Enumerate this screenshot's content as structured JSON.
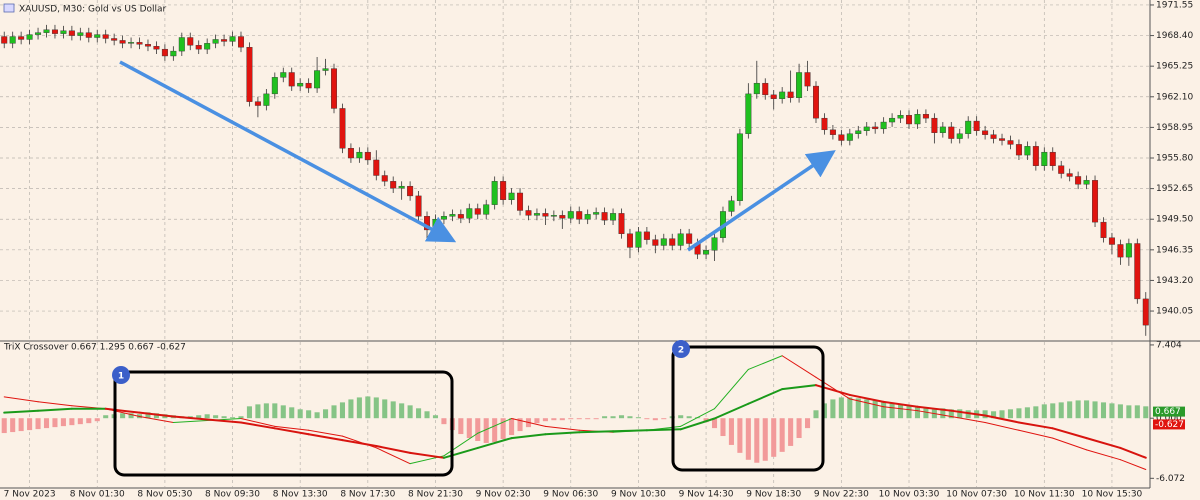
{
  "chart_data": [
    {
      "type": "candlestick",
      "title": "XAUUSD, M30: Gold vs US Dollar",
      "categories": [
        null,
        null,
        null,
        "7 Nov 2023",
        null,
        null,
        null,
        null,
        null,
        null,
        null,
        "8 Nov 01:30",
        null,
        null,
        null,
        null,
        null,
        null,
        null,
        "8 Nov 05:30",
        null,
        null,
        null,
        null,
        null,
        null,
        null,
        "8 Nov 09:30",
        null,
        null,
        null,
        null,
        null,
        null,
        null,
        "8 Nov 13:30",
        null,
        null,
        null,
        null,
        null,
        null,
        null,
        "8 Nov 17:30",
        null,
        null,
        null,
        null,
        null,
        null,
        null,
        "8 Nov 21:30",
        null,
        null,
        null,
        null,
        null,
        null,
        null,
        "9 Nov 02:30",
        null,
        null,
        null,
        null,
        null,
        null,
        null,
        "9 Nov 06:30",
        null,
        null,
        null,
        null,
        null,
        null,
        null,
        "9 Nov 10:30",
        null,
        null,
        null,
        null,
        null,
        null,
        null,
        "9 Nov 14:30",
        null,
        null,
        null,
        null,
        null,
        null,
        null,
        "9 Nov 18:30",
        null,
        null,
        null,
        null,
        null,
        null,
        null,
        "9 Nov 22:30",
        null,
        null,
        null,
        null,
        null,
        null,
        null,
        "10 Nov 03:30",
        null,
        null,
        null,
        null,
        null,
        null,
        null,
        "10 Nov 07:30",
        null,
        null,
        null,
        null,
        null,
        null,
        null,
        "10 Nov 11:30",
        null,
        null,
        null,
        null,
        null,
        null,
        null,
        "10 Nov 15:30",
        null,
        null,
        null,
        null
      ],
      "open": [
        1968.3,
        1967.6,
        1968.3,
        1968.0,
        1968.5,
        1968.7,
        1969.0,
        1968.6,
        1968.9,
        1968.4,
        1968.7,
        1968.2,
        1968.5,
        1968.1,
        1967.9,
        1967.6,
        1967.7,
        1967.5,
        1967.3,
        1967.0,
        1966.3,
        1966.8,
        1968.2,
        1967.4,
        1967.0,
        1967.6,
        1968.0,
        1967.8,
        1968.3,
        1967.2,
        1961.6,
        1961.2,
        1962.4,
        1964.1,
        1964.6,
        1963.2,
        1963.5,
        1963.0,
        1964.8,
        1965.0,
        1960.9,
        1956.8,
        1955.8,
        1956.4,
        1955.6,
        1954.0,
        1953.4,
        1952.7,
        1952.9,
        1951.9,
        1949.8,
        1948.4,
        1949.5,
        1949.8,
        1950.0,
        1949.6,
        1950.6,
        1950.0,
        1951.0,
        1953.4,
        1951.5,
        1952.2,
        1950.4,
        1949.9,
        1950.1,
        1949.8,
        1949.9,
        1949.6,
        1950.3,
        1949.5,
        1950.0,
        1950.2,
        1949.4,
        1950.1,
        1948.0,
        1946.6,
        1948.2,
        1947.4,
        1946.8,
        1947.5,
        1946.8,
        1948.0,
        1947.0,
        1945.9,
        1946.3,
        1947.6,
        1950.3,
        1951.4,
        1958.3,
        1962.4,
        1963.5,
        1962.3,
        1961.9,
        1962.6,
        1962.0,
        1964.6,
        1963.2,
        1959.9,
        1958.7,
        1958.2,
        1957.6,
        1958.3,
        1958.6,
        1959.0,
        1958.8,
        1959.5,
        1959.9,
        1960.2,
        1959.3,
        1960.3,
        1959.9,
        1958.4,
        1959.0,
        1957.8,
        1958.3,
        1959.6,
        1958.6,
        1958.2,
        1957.8,
        1957.6,
        1957.2,
        1956.1,
        1957.0,
        1955.0,
        1956.4,
        1955.0,
        1954.2,
        1953.9,
        1953.1,
        1953.5,
        1949.2,
        1947.6,
        1946.9,
        1945.6,
        1947.0,
        1941.3
      ],
      "high": [
        1968.8,
        1968.8,
        1968.8,
        1969.0,
        1969.2,
        1969.5,
        1969.5,
        1969.4,
        1969.4,
        1969.2,
        1969.2,
        1969.0,
        1969.0,
        1968.6,
        1968.4,
        1968.2,
        1968.2,
        1968.0,
        1967.8,
        1967.5,
        1967.3,
        1968.7,
        1968.7,
        1967.9,
        1968.1,
        1968.5,
        1968.5,
        1968.8,
        1968.8,
        1967.7,
        1962.1,
        1962.9,
        1964.6,
        1965.1,
        1965.1,
        1964.0,
        1964.0,
        1966.2,
        1966.0,
        1965.5,
        1961.4,
        1957.3,
        1956.9,
        1956.9,
        1956.6,
        1954.5,
        1953.9,
        1953.4,
        1953.4,
        1952.4,
        1950.3,
        1950.0,
        1950.3,
        1950.5,
        1950.5,
        1951.1,
        1951.1,
        1951.5,
        1953.9,
        1953.9,
        1952.7,
        1952.7,
        1950.9,
        1950.6,
        1950.6,
        1950.4,
        1950.4,
        1950.8,
        1950.8,
        1950.5,
        1950.7,
        1950.7,
        1950.6,
        1950.6,
        1948.5,
        1948.7,
        1948.7,
        1947.9,
        1948.0,
        1948.0,
        1948.5,
        1948.5,
        1947.5,
        1946.8,
        1948.1,
        1950.8,
        1951.9,
        1958.8,
        1963.5,
        1965.8,
        1964.0,
        1962.8,
        1963.1,
        1964.8,
        1965.5,
        1965.8,
        1963.7,
        1960.4,
        1959.2,
        1958.7,
        1958.8,
        1959.1,
        1959.5,
        1959.5,
        1960.0,
        1960.4,
        1960.7,
        1960.7,
        1960.8,
        1960.8,
        1960.4,
        1959.5,
        1959.5,
        1958.8,
        1960.1,
        1960.1,
        1959.1,
        1958.7,
        1958.3,
        1958.1,
        1957.7,
        1957.5,
        1957.5,
        1956.9,
        1956.9,
        1955.5,
        1954.7,
        1954.4,
        1954.0,
        1954.0,
        1949.7,
        1948.1,
        1947.4,
        1947.5,
        1947.5,
        1942.0
      ],
      "low": [
        1967.1,
        1967.1,
        1967.5,
        1967.5,
        1968.0,
        1968.2,
        1968.1,
        1968.1,
        1967.9,
        1967.9,
        1967.7,
        1967.7,
        1967.6,
        1967.4,
        1967.1,
        1967.1,
        1967.0,
        1966.8,
        1966.5,
        1965.8,
        1965.8,
        1966.3,
        1966.9,
        1966.5,
        1966.5,
        1967.1,
        1967.3,
        1967.3,
        1966.7,
        1961.1,
        1960.0,
        1960.7,
        1961.9,
        1963.6,
        1962.7,
        1962.7,
        1962.5,
        1962.5,
        1964.3,
        1960.4,
        1956.3,
        1955.3,
        1955.3,
        1955.1,
        1953.5,
        1952.9,
        1952.2,
        1951.5,
        1951.4,
        1949.3,
        1947.5,
        1947.9,
        1949.0,
        1949.3,
        1949.1,
        1949.1,
        1949.5,
        1949.5,
        1950.5,
        1951.0,
        1951.0,
        1949.9,
        1949.4,
        1949.4,
        1948.9,
        1949.3,
        1948.5,
        1949.1,
        1949.0,
        1949.0,
        1949.5,
        1948.9,
        1948.9,
        1947.5,
        1945.5,
        1946.1,
        1946.9,
        1946.0,
        1946.3,
        1946.3,
        1946.3,
        1946.5,
        1945.4,
        1945.4,
        1945.2,
        1947.1,
        1949.8,
        1950.9,
        1957.8,
        1961.9,
        1961.8,
        1960.8,
        1961.4,
        1961.5,
        1961.5,
        1962.7,
        1959.4,
        1958.2,
        1957.7,
        1957.1,
        1957.1,
        1957.8,
        1958.1,
        1958.3,
        1958.3,
        1959.0,
        1959.4,
        1958.8,
        1958.8,
        1959.4,
        1957.3,
        1957.9,
        1957.3,
        1957.3,
        1957.8,
        1958.1,
        1957.7,
        1957.3,
        1957.1,
        1956.7,
        1955.6,
        1955.6,
        1954.5,
        1954.5,
        1954.5,
        1953.7,
        1953.4,
        1952.6,
        1952.6,
        1948.7,
        1947.1,
        1945.9,
        1944.8,
        1944.7,
        1940.8,
        1937.5
      ],
      "close": [
        1967.6,
        1968.3,
        1968.0,
        1968.5,
        1968.7,
        1969.0,
        1968.6,
        1968.9,
        1968.4,
        1968.7,
        1968.2,
        1968.5,
        1968.1,
        1967.9,
        1967.6,
        1967.7,
        1967.5,
        1967.3,
        1967.0,
        1966.3,
        1966.8,
        1968.2,
        1967.4,
        1967.0,
        1967.6,
        1968.0,
        1967.8,
        1968.3,
        1967.2,
        1961.6,
        1961.2,
        1962.4,
        1964.1,
        1964.6,
        1963.2,
        1963.5,
        1963.0,
        1964.8,
        1965.0,
        1960.9,
        1956.8,
        1955.8,
        1956.4,
        1955.6,
        1954.0,
        1953.4,
        1952.7,
        1952.9,
        1951.9,
        1949.8,
        1948.4,
        1949.5,
        1949.8,
        1950.0,
        1949.6,
        1950.6,
        1950.0,
        1951.0,
        1953.4,
        1951.5,
        1952.2,
        1950.4,
        1949.9,
        1950.1,
        1949.8,
        1949.9,
        1949.6,
        1950.3,
        1949.5,
        1950.0,
        1950.2,
        1949.4,
        1950.1,
        1948.0,
        1946.6,
        1948.2,
        1947.4,
        1946.8,
        1947.5,
        1946.8,
        1948.0,
        1947.0,
        1945.9,
        1946.3,
        1947.6,
        1950.3,
        1951.4,
        1958.3,
        1962.4,
        1963.5,
        1962.3,
        1961.9,
        1962.6,
        1962.0,
        1964.6,
        1963.2,
        1959.9,
        1958.7,
        1958.2,
        1957.6,
        1958.3,
        1958.6,
        1959.0,
        1958.8,
        1959.5,
        1959.9,
        1960.2,
        1959.3,
        1960.3,
        1959.9,
        1958.4,
        1959.0,
        1957.8,
        1958.3,
        1959.6,
        1958.6,
        1958.2,
        1957.8,
        1957.6,
        1957.2,
        1956.1,
        1957.0,
        1955.0,
        1956.4,
        1955.0,
        1954.2,
        1953.9,
        1953.1,
        1953.5,
        1949.2,
        1947.6,
        1946.9,
        1945.6,
        1947.0,
        1941.3,
        1938.6
      ],
      "up_color": "#1fc01f",
      "down_color": "#e0140f",
      "ylim": [
        1937.07,
        1972.06
      ],
      "yticks": [
        1971.55,
        {
          "value": 1968.4,
          "label": "1968.40"
        },
        1965.25,
        {
          "value": 1962.1,
          "label": "1962.10"
        },
        1958.95,
        {
          "value": 1955.8,
          "label": "1955.80"
        },
        1952.65,
        {
          "value": 1949.5,
          "label": "1949.50"
        },
        1946.35,
        {
          "value": 1943.2,
          "label": "1943.20"
        },
        1940.05
      ],
      "grid": true,
      "annotations": [
        "1",
        "2"
      ]
    },
    {
      "type": "combo",
      "title": "TriX Crossover 0.667 1.295 0.667 -0.627",
      "histogram": {
        "values": [
          -1.5,
          -1.4,
          -1.3,
          -1.2,
          -1.1,
          -1.0,
          -0.9,
          -0.8,
          -0.7,
          -0.6,
          -0.5,
          -0.3,
          0.3,
          0.4,
          0.5,
          0.5,
          0.4,
          0.6,
          0.5,
          0.4,
          0.3,
          0.2,
          0.2,
          0.3,
          0.4,
          0.3,
          0.2,
          0.1,
          0.2,
          1.2,
          1.4,
          1.5,
          1.5,
          1.3,
          1.1,
          0.9,
          0.8,
          0.6,
          0.9,
          1.3,
          1.6,
          1.9,
          2.1,
          2.2,
          2.1,
          1.9,
          1.7,
          1.5,
          1.3,
          1.0,
          0.7,
          0.3,
          -0.6,
          -1.2,
          -1.6,
          -2.0,
          -2.3,
          -2.5,
          -2.4,
          -2.1,
          -1.7,
          -1.3,
          -0.9,
          -0.5,
          -0.3,
          -0.2,
          -0.2,
          -0.1,
          -0.1,
          -0.1,
          -0.1,
          0.2,
          0.2,
          0.3,
          0.2,
          0.1,
          -0.1,
          -0.2,
          -0.1,
          0.2,
          0.3,
          0.2,
          0.1,
          -0.4,
          -1.0,
          -1.8,
          -2.7,
          -3.5,
          -4.2,
          -4.5,
          -4.3,
          -3.9,
          -3.4,
          -2.8,
          -2.0,
          -1.0,
          0.8,
          1.5,
          1.9,
          2.1,
          2.1,
          2.0,
          1.9,
          1.8,
          1.6,
          1.5,
          1.4,
          1.3,
          1.2,
          1.1,
          1.0,
          1.0,
          0.9,
          0.9,
          0.8,
          0.8,
          0.8,
          0.7,
          0.8,
          0.9,
          1.0,
          1.1,
          1.2,
          1.4,
          1.5,
          1.6,
          1.7,
          1.8,
          1.8,
          1.7,
          1.6,
          1.5,
          1.4,
          1.3,
          1.3,
          1.2
        ],
        "up_color": "#86c486",
        "down_color": "#f29a9a"
      },
      "series": [
        {
          "x": [
            0,
            4,
            8,
            12,
            16,
            20,
            24,
            28,
            32,
            36,
            40,
            44,
            48,
            52,
            56,
            60,
            64,
            68,
            72,
            76,
            80,
            84,
            88,
            92,
            96,
            100,
            104,
            108,
            112,
            116,
            120,
            124,
            128,
            132,
            135
          ],
          "values": [
            2.15,
            1.66,
            1.26,
            0.96,
            0.17,
            -0.43,
            -0.23,
            -0.03,
            -0.82,
            -1.22,
            -1.81,
            -2.99,
            -4.59,
            -3.8,
            -1.52,
            -0.03,
            -0.82,
            -1.22,
            -1.42,
            -1.22,
            -0.82,
            0.96,
            4.93,
            6.31,
            4.13,
            1.95,
            1.16,
            0.76,
            0.17,
            -0.43,
            -1.22,
            -2.01,
            -3.2,
            -4.19,
            -5.18
          ],
          "width": 1,
          "up_color": "#22b022",
          "down_color": "#e0140f"
        },
        {
          "x": [
            0,
            4,
            8,
            12,
            16,
            20,
            24,
            28,
            32,
            36,
            40,
            44,
            48,
            52,
            56,
            60,
            64,
            68,
            72,
            76,
            80,
            84,
            88,
            92,
            96,
            100,
            104,
            108,
            112,
            116,
            120,
            124,
            128,
            132,
            135
          ],
          "values": [
            0.56,
            0.76,
            0.96,
            0.96,
            0.56,
            0.17,
            -0.13,
            -0.43,
            -1.02,
            -1.62,
            -2.21,
            -2.81,
            -3.5,
            -4.0,
            -3.0,
            -2.01,
            -1.62,
            -1.42,
            -1.32,
            -1.22,
            -1.12,
            -0.03,
            1.46,
            2.94,
            3.34,
            2.35,
            1.65,
            1.16,
            0.76,
            0.27,
            -0.43,
            -1.02,
            -2.01,
            -3.0,
            -3.99
          ],
          "width": 2,
          "up_color": "#1a9a1a",
          "down_color": "#d8140f"
        }
      ],
      "ylim": [
        -6.95,
        7.7
      ],
      "yticks": [
        7.404,
        {
          "value": 0,
          "label": "0.000"
        },
        -6.072
      ],
      "value_markers": [
        {
          "value": 0.667,
          "color": "#2a9a2a"
        },
        {
          "value": -0.627,
          "color": "#e0140f"
        }
      ]
    }
  ]
}
